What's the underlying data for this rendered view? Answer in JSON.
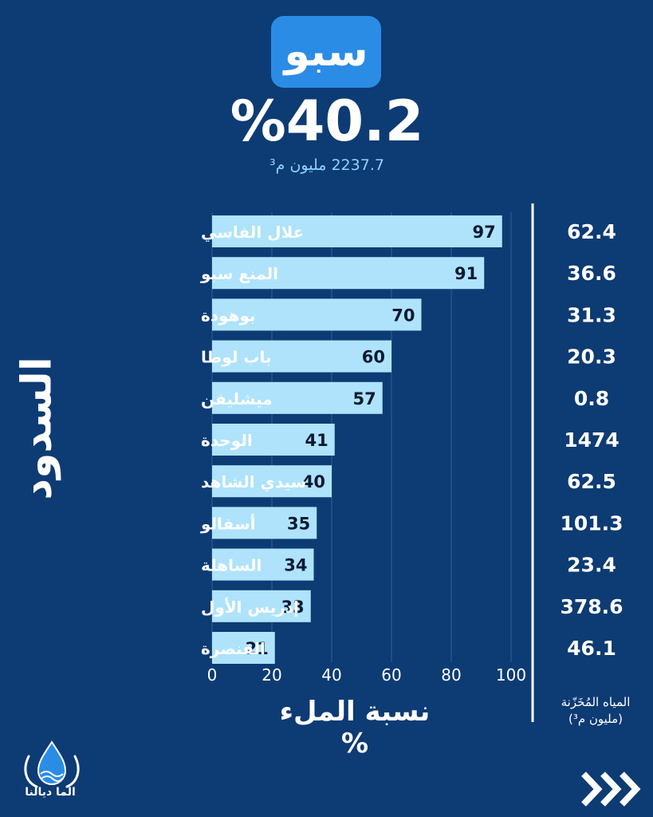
{
  "header": {
    "basin_name": "سبو",
    "fill_percent": "%40.2",
    "stored_volume": "2237.7 مليون م³"
  },
  "side_title": "السدود",
  "volume_header": "المياه المُخَزّنة\n(مليون م³)",
  "logo_text": "الما ديالنا",
  "colors": {
    "background": "#0d3b73",
    "bar": "#aee3fb",
    "badge": "#2b8ce6",
    "text": "#ffffff"
  },
  "icons": {
    "logo": "water-drop-hands-icon",
    "next": "triple-chevron-right-icon"
  },
  "chart_data": {
    "type": "bar",
    "orientation": "horizontal",
    "categories": [
      "علال الفاسي",
      "المنع سبو",
      "بوهودة",
      "باب لوطا",
      "ميشليفن",
      "الوحدة",
      "سيدي الشاهد",
      "أسفالو",
      "الساهلة",
      "إدريس الأول",
      "القنصرة"
    ],
    "values": [
      97,
      91,
      70,
      60,
      57,
      41,
      40,
      35,
      34,
      33,
      21
    ],
    "stored_volumes": [
      "62.4",
      "36.6",
      "31.3",
      "20.3",
      "0.8",
      "1474",
      "62.5",
      "101.3",
      "23.4",
      "378.6",
      "46.1"
    ],
    "xlabel": "نسبة الملء %",
    "xlim": [
      0,
      100
    ],
    "xticks": [
      "0",
      "20",
      "40",
      "60",
      "80",
      "100"
    ],
    "grid": true
  }
}
